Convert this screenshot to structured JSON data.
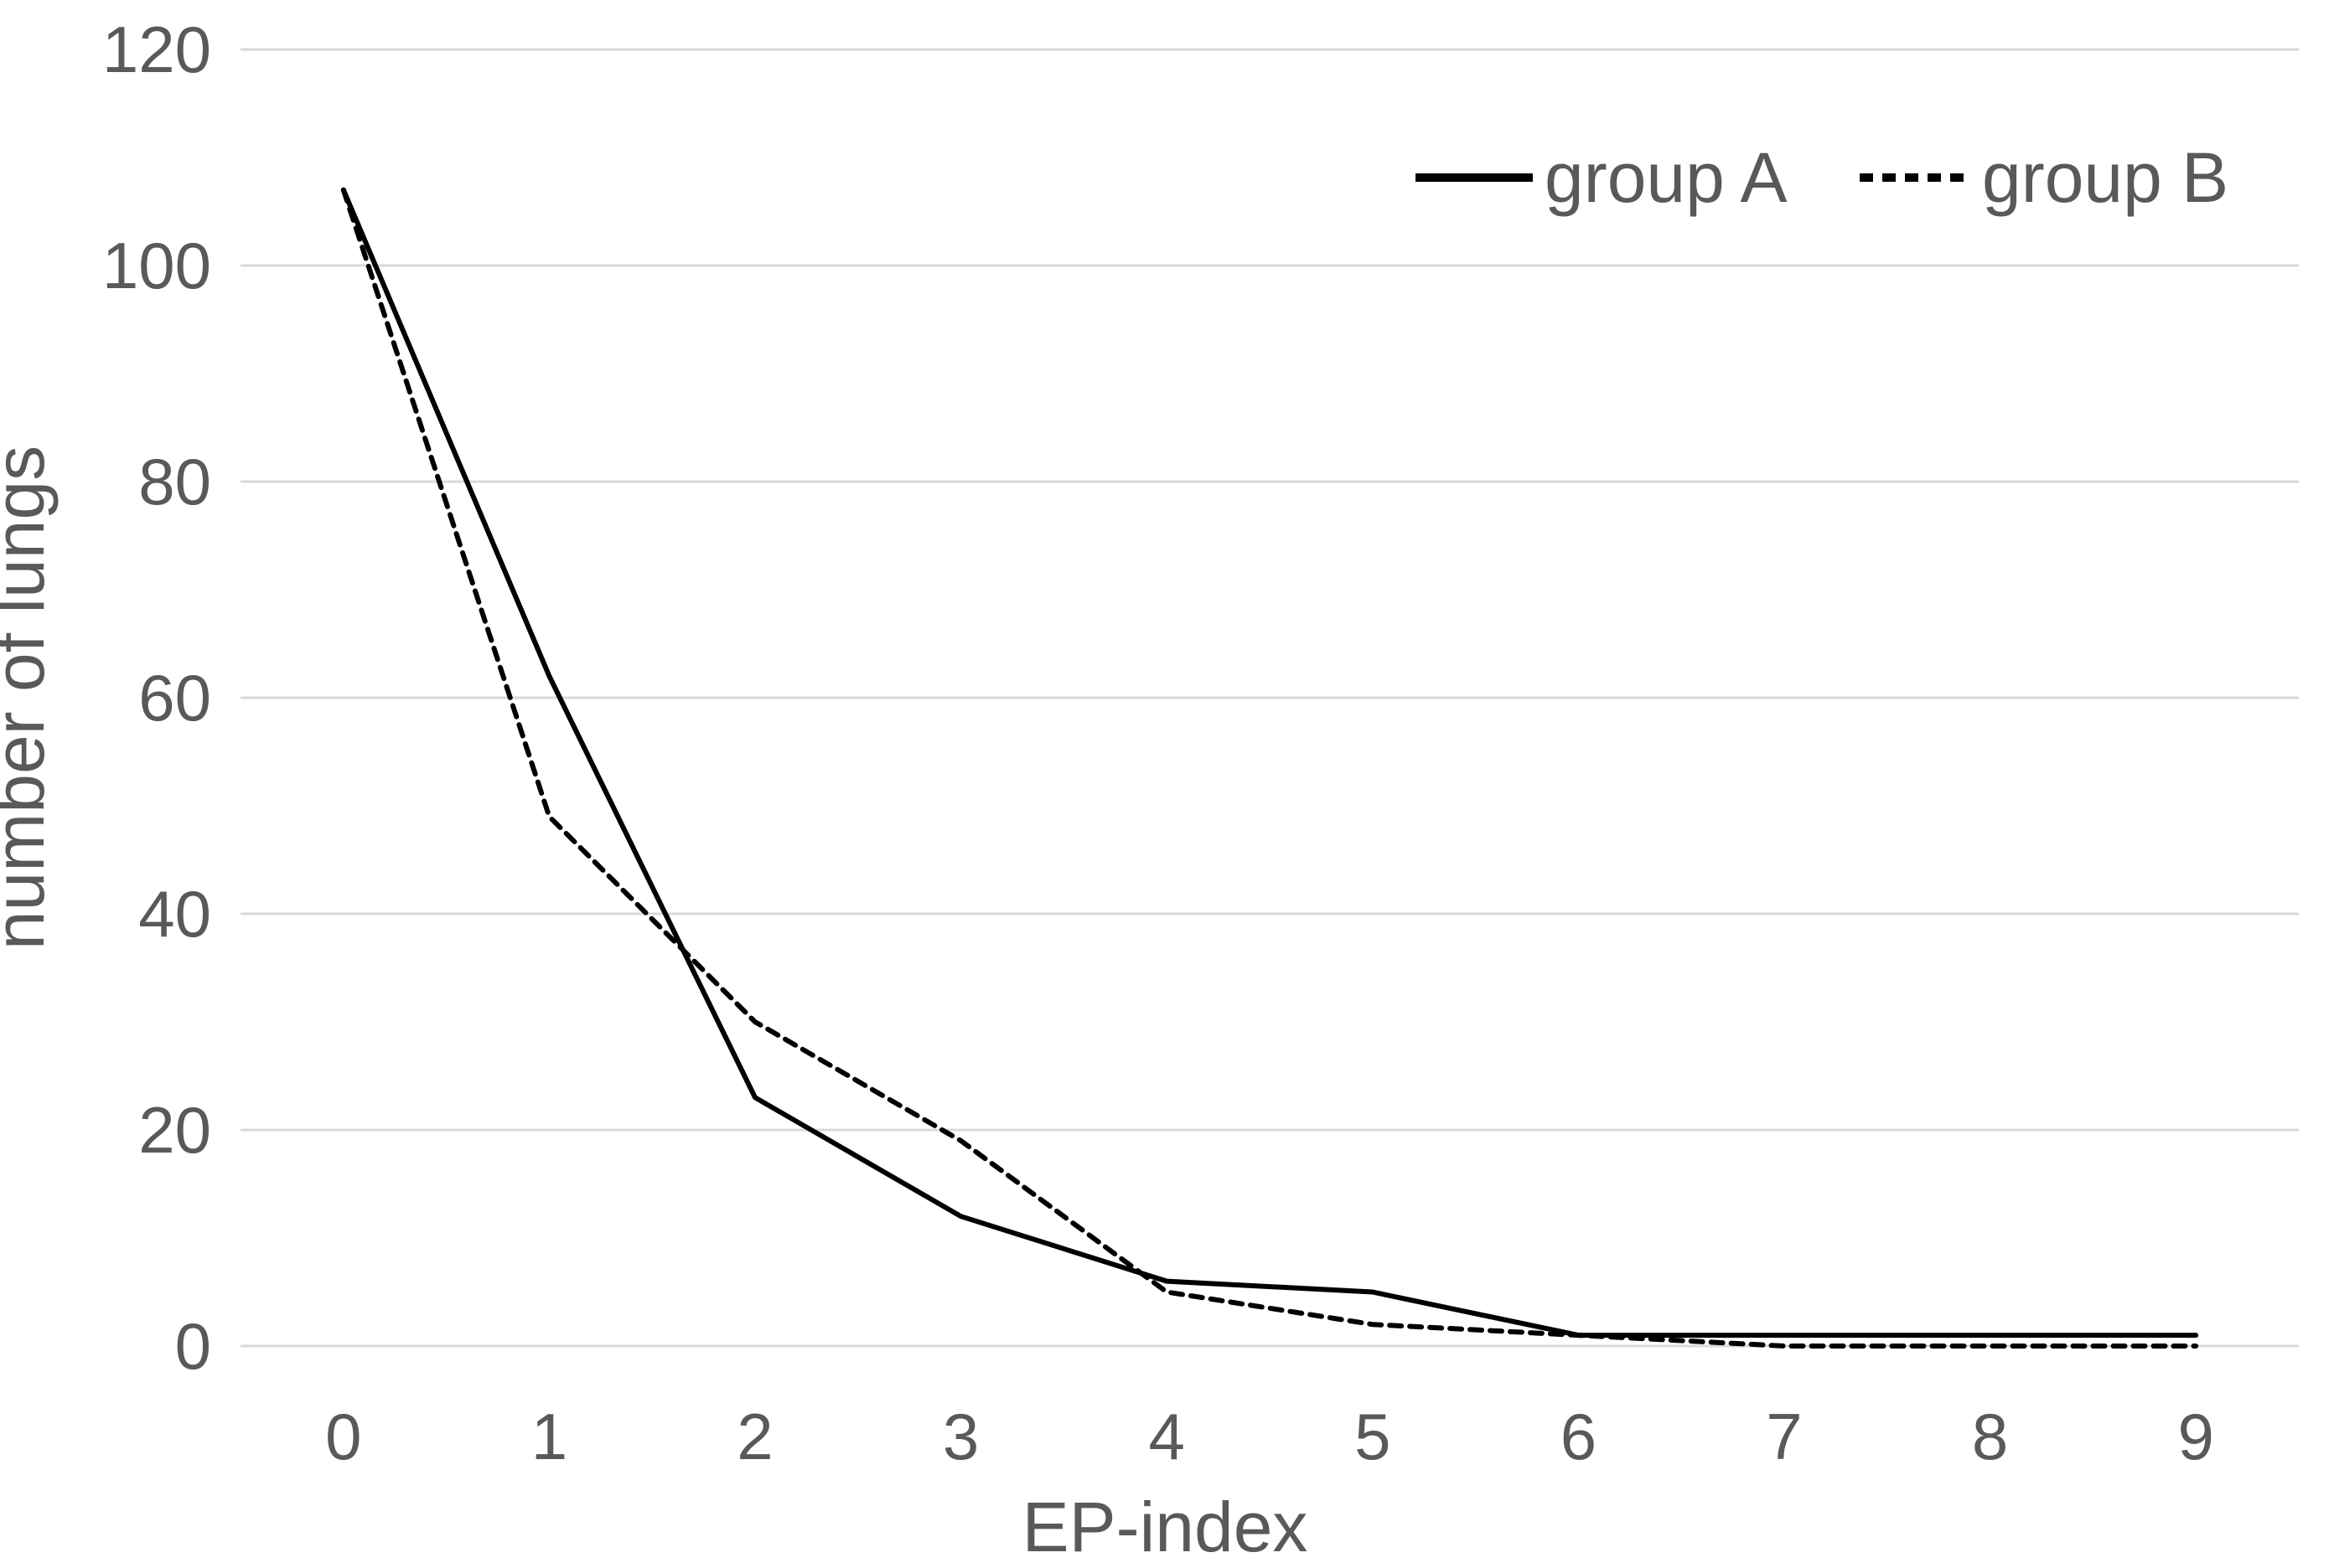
{
  "chart_data": {
    "type": "line",
    "title": "",
    "xlabel": "EP-index",
    "ylabel": "number of lungs",
    "x_tick_labels": [
      "0",
      "1",
      "2",
      "3",
      "4",
      "5",
      "6",
      "7",
      "8",
      "9"
    ],
    "y_tick_labels": [
      "0",
      "20",
      "40",
      "60",
      "80",
      "100",
      "120"
    ],
    "yticks": [
      0,
      20,
      40,
      60,
      80,
      100,
      120
    ],
    "ylim": [
      0,
      120
    ],
    "grid": true,
    "legend_position": "top-right",
    "series": [
      {
        "name": "group A",
        "line_style": "solid",
        "color": "#000000",
        "values": [
          107,
          62,
          23,
          12,
          6,
          5,
          1,
          1,
          1,
          1
        ]
      },
      {
        "name": "group B",
        "line_style": "dashed",
        "color": "#000000",
        "values": [
          107,
          49,
          30,
          19,
          5,
          2,
          1,
          0,
          0,
          0
        ]
      }
    ],
    "colors": {
      "text": "#595959",
      "gridline": "#d9d9d9",
      "background": "#ffffff"
    }
  }
}
